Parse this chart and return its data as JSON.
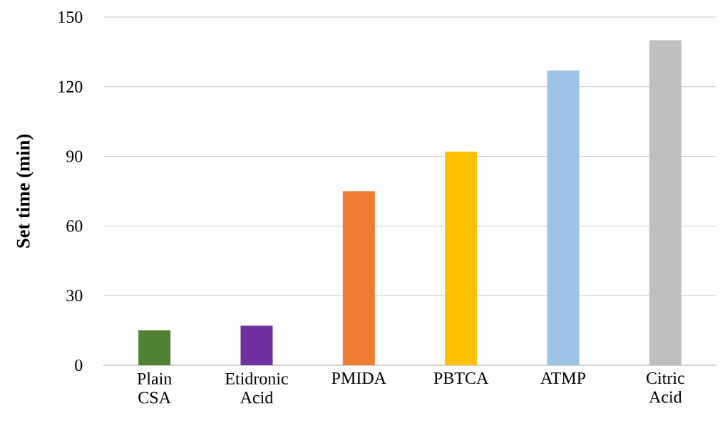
{
  "chart_data": {
    "type": "bar",
    "ylabel": "Set time (min)",
    "categories": [
      "Plain CSA",
      "Etidronic Acid",
      "PMIDA",
      "PBTCA",
      "ATMP",
      "Citric Acid"
    ],
    "values": [
      15,
      17,
      75,
      92,
      127,
      140
    ],
    "colors": [
      "#548235",
      "#7030a0",
      "#ed7d31",
      "#ffc000",
      "#9dc3e6",
      "#bfbfbf"
    ],
    "ylim": [
      0,
      150
    ],
    "yticks": [
      0,
      30,
      60,
      90,
      120,
      150
    ],
    "grid": "y"
  }
}
